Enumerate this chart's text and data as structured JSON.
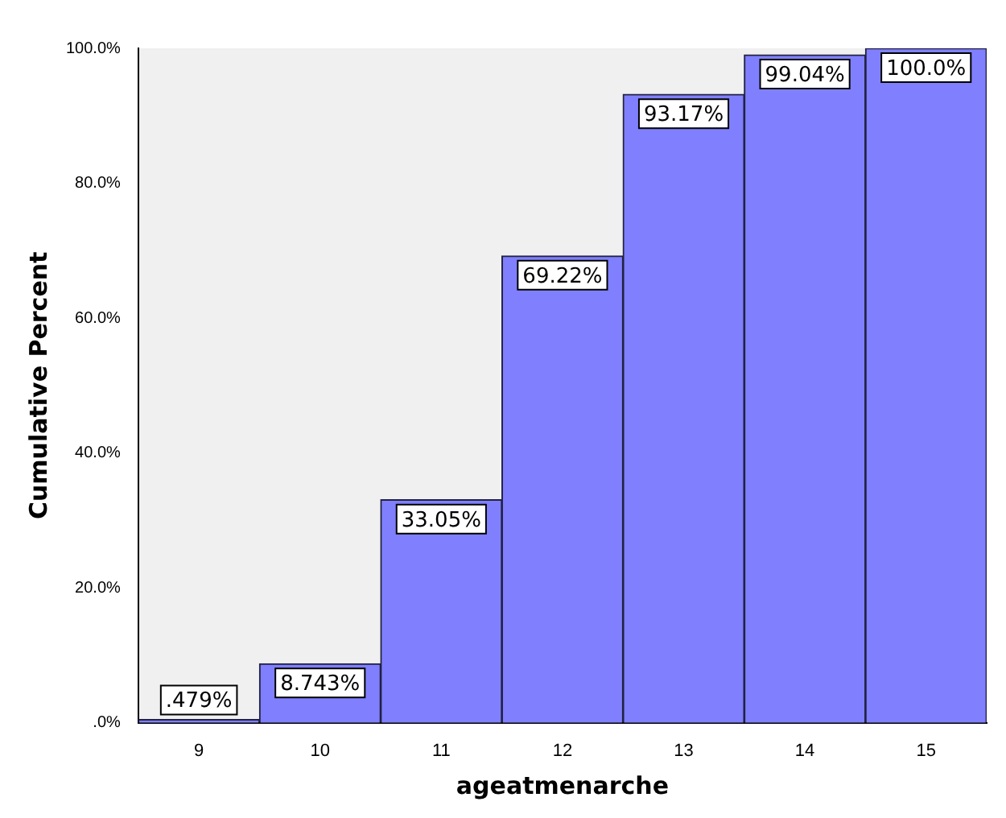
{
  "chart_data": {
    "type": "bar",
    "xlabel": "ageatmenarche",
    "ylabel": "Cumulative Percent",
    "categories": [
      "9",
      "10",
      "11",
      "12",
      "13",
      "14",
      "15"
    ],
    "values": [
      0.479,
      8.743,
      33.05,
      69.22,
      93.17,
      99.04,
      100.0
    ],
    "value_labels": [
      ".479%",
      "8.743%",
      "33.05%",
      "69.22%",
      "93.17%",
      "99.04%",
      "100.0%"
    ],
    "color": "#8080ff",
    "ylim": [
      0,
      100
    ],
    "yticks": [
      {
        "value": 0,
        "label": ".0%"
      },
      {
        "value": 20,
        "label": "20.0%"
      },
      {
        "value": 40,
        "label": "40.0%"
      },
      {
        "value": 60,
        "label": "60.0%"
      },
      {
        "value": 80,
        "label": "80.0%"
      },
      {
        "value": 100,
        "label": "100.0%"
      }
    ],
    "grid": false,
    "legend": false
  }
}
